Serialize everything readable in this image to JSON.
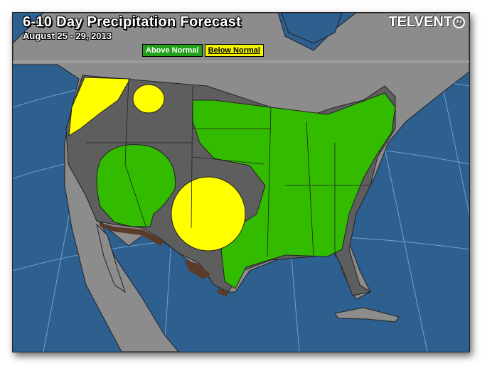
{
  "title": "6-10 Day Precipitation Forecast",
  "subtitle": "August 25 - 29, 2013",
  "logo": {
    "text": "TELVENT",
    "badge": "dtn"
  },
  "legend": [
    {
      "label": "Above Normal",
      "color": "#22a01a"
    },
    {
      "label": "Below Normal",
      "color": "#f5f500"
    }
  ],
  "colors": {
    "ocean": "#2d5f8f",
    "land": "#8c8c8c",
    "normal": "#5e5e5e",
    "above": "#33bb00",
    "below": "#ffff00",
    "mexico_border": "#5a3a28"
  }
}
